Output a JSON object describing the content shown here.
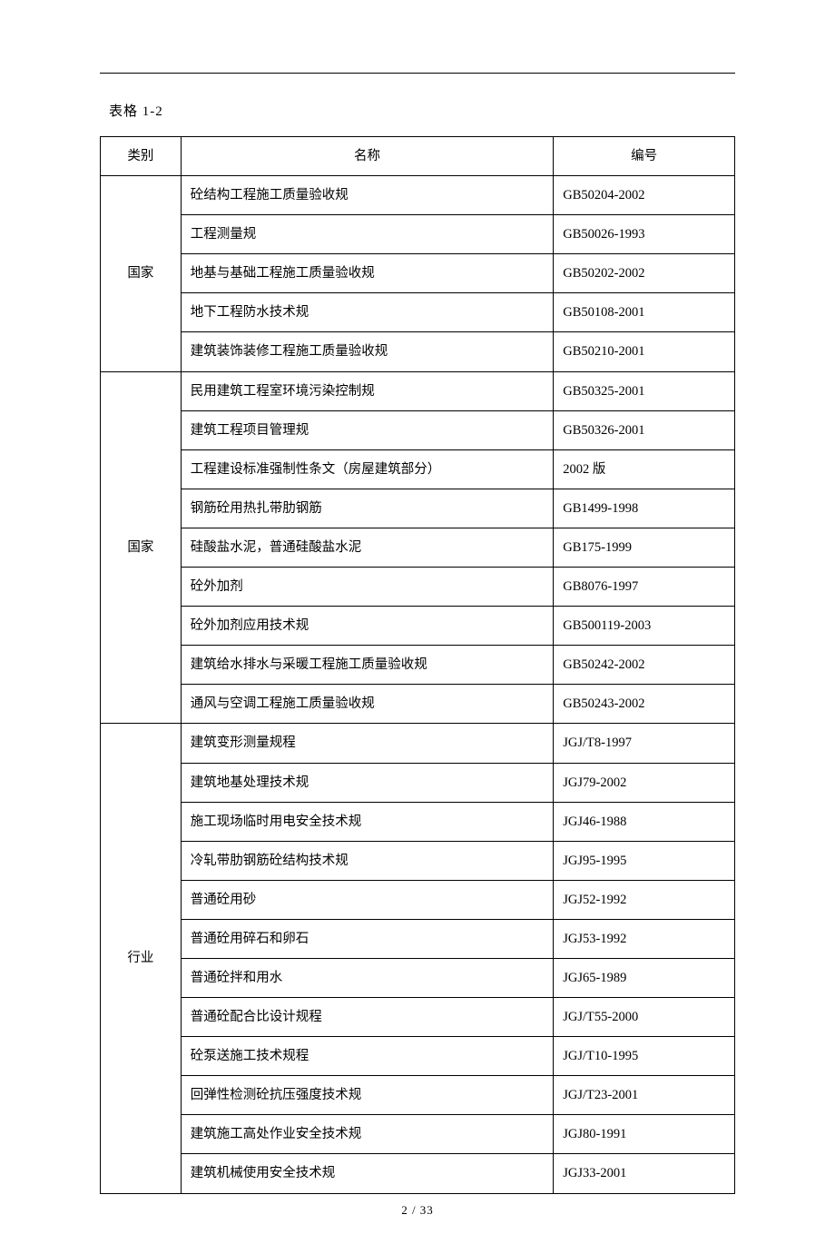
{
  "caption": "表格 1-2",
  "headers": {
    "category": "类别",
    "name": "名称",
    "code": "编号"
  },
  "groups": [
    {
      "category": "国家",
      "rows": [
        {
          "name": "砼结构工程施工质量验收规",
          "code": "GB50204-2002"
        },
        {
          "name": "工程测量规",
          "code": "GB50026-1993"
        },
        {
          "name": "地基与基础工程施工质量验收规",
          "code": "GB50202-2002"
        },
        {
          "name": "地下工程防水技术规",
          "code": "GB50108-2001"
        },
        {
          "name": "建筑装饰装修工程施工质量验收规",
          "code": "GB50210-2001"
        }
      ]
    },
    {
      "category": "国家",
      "rows": [
        {
          "name": "民用建筑工程室环境污染控制规",
          "code": "GB50325-2001"
        },
        {
          "name": "建筑工程项目管理规",
          "code": "GB50326-2001"
        },
        {
          "name": "工程建设标准强制性条文（房屋建筑部分）",
          "code": "2002 版"
        },
        {
          "name": "钢筋砼用热扎带肋钢筋",
          "code": "GB1499-1998"
        },
        {
          "name": "硅酸盐水泥，普通硅酸盐水泥",
          "code": "GB175-1999"
        },
        {
          "name": "砼外加剂",
          "code": "GB8076-1997"
        },
        {
          "name": "砼外加剂应用技术规",
          "code": "GB500119-2003"
        },
        {
          "name": "建筑给水排水与采暖工程施工质量验收规",
          "code": "GB50242-2002"
        },
        {
          "name": "通风与空调工程施工质量验收规",
          "code": "GB50243-2002"
        }
      ]
    },
    {
      "category": "行业",
      "rows": [
        {
          "name": "建筑变形测量规程",
          "code": "JGJ/T8-1997"
        },
        {
          "name": "建筑地基处理技术规",
          "code": "JGJ79-2002"
        },
        {
          "name": "施工现场临时用电安全技术规",
          "code": "JGJ46-1988"
        },
        {
          "name": "冷轧带肋钢筋砼结构技术规",
          "code": "JGJ95-1995"
        },
        {
          "name": "普通砼用砂",
          "code": "JGJ52-1992"
        },
        {
          "name": "普通砼用碎石和卵石",
          "code": "JGJ53-1992"
        },
        {
          "name": "普通砼拌和用水",
          "code": "JGJ65-1989"
        },
        {
          "name": "普通砼配合比设计规程",
          "code": "JGJ/T55-2000"
        },
        {
          "name": "砼泵送施工技术规程",
          "code": "JGJ/T10-1995"
        },
        {
          "name": "回弹性检测砼抗压强度技术规",
          "code": "JGJ/T23-2001"
        },
        {
          "name": "建筑施工高处作业安全技术规",
          "code": "JGJ80-1991"
        },
        {
          "name": "建筑机械使用安全技术规",
          "code": "JGJ33-2001"
        }
      ]
    }
  ],
  "footer": "2 / 33"
}
